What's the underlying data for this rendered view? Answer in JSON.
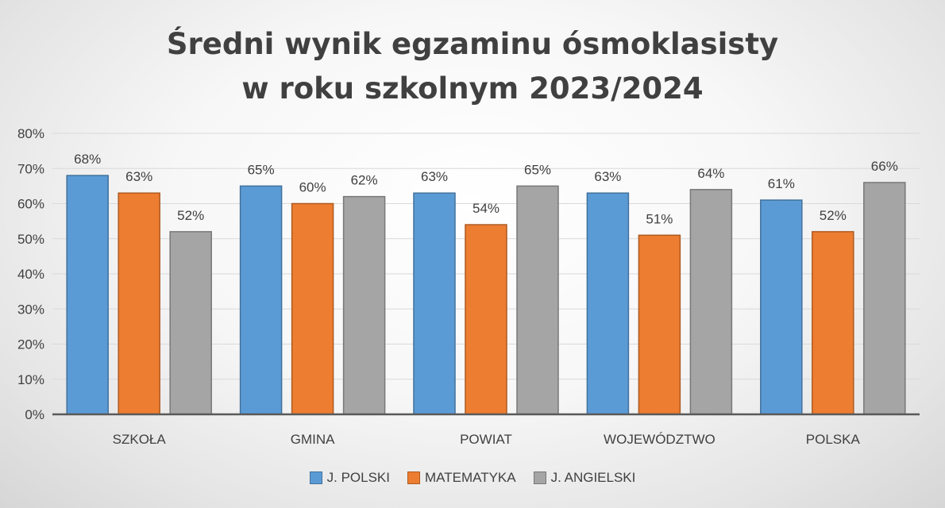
{
  "chart_data": {
    "type": "bar",
    "title_lines": [
      "Średni wynik egzaminu ósmoklasisty",
      "w roku szkolnym 2023/2024"
    ],
    "categories": [
      "SZKOŁA",
      "GMINA",
      "POWIAT",
      "WOJEWÓDZTWO",
      "POLSKA"
    ],
    "series": [
      {
        "name": "J. POLSKI",
        "values": [
          68,
          65,
          63,
          63,
          61
        ],
        "color": "#5b9bd5"
      },
      {
        "name": "MATEMATYKA",
        "values": [
          63,
          60,
          54,
          51,
          52
        ],
        "color": "#ed7d31"
      },
      {
        "name": "J. ANGIELSKI",
        "values": [
          52,
          62,
          65,
          64,
          66
        ],
        "color": "#a5a5a5"
      }
    ],
    "yticks": [
      "0%",
      "10%",
      "20%",
      "30%",
      "40%",
      "50%",
      "60%",
      "70%",
      "80%"
    ],
    "ylim": [
      0,
      80
    ],
    "value_suffix": "%",
    "grid": true,
    "legend_position": "bottom"
  }
}
